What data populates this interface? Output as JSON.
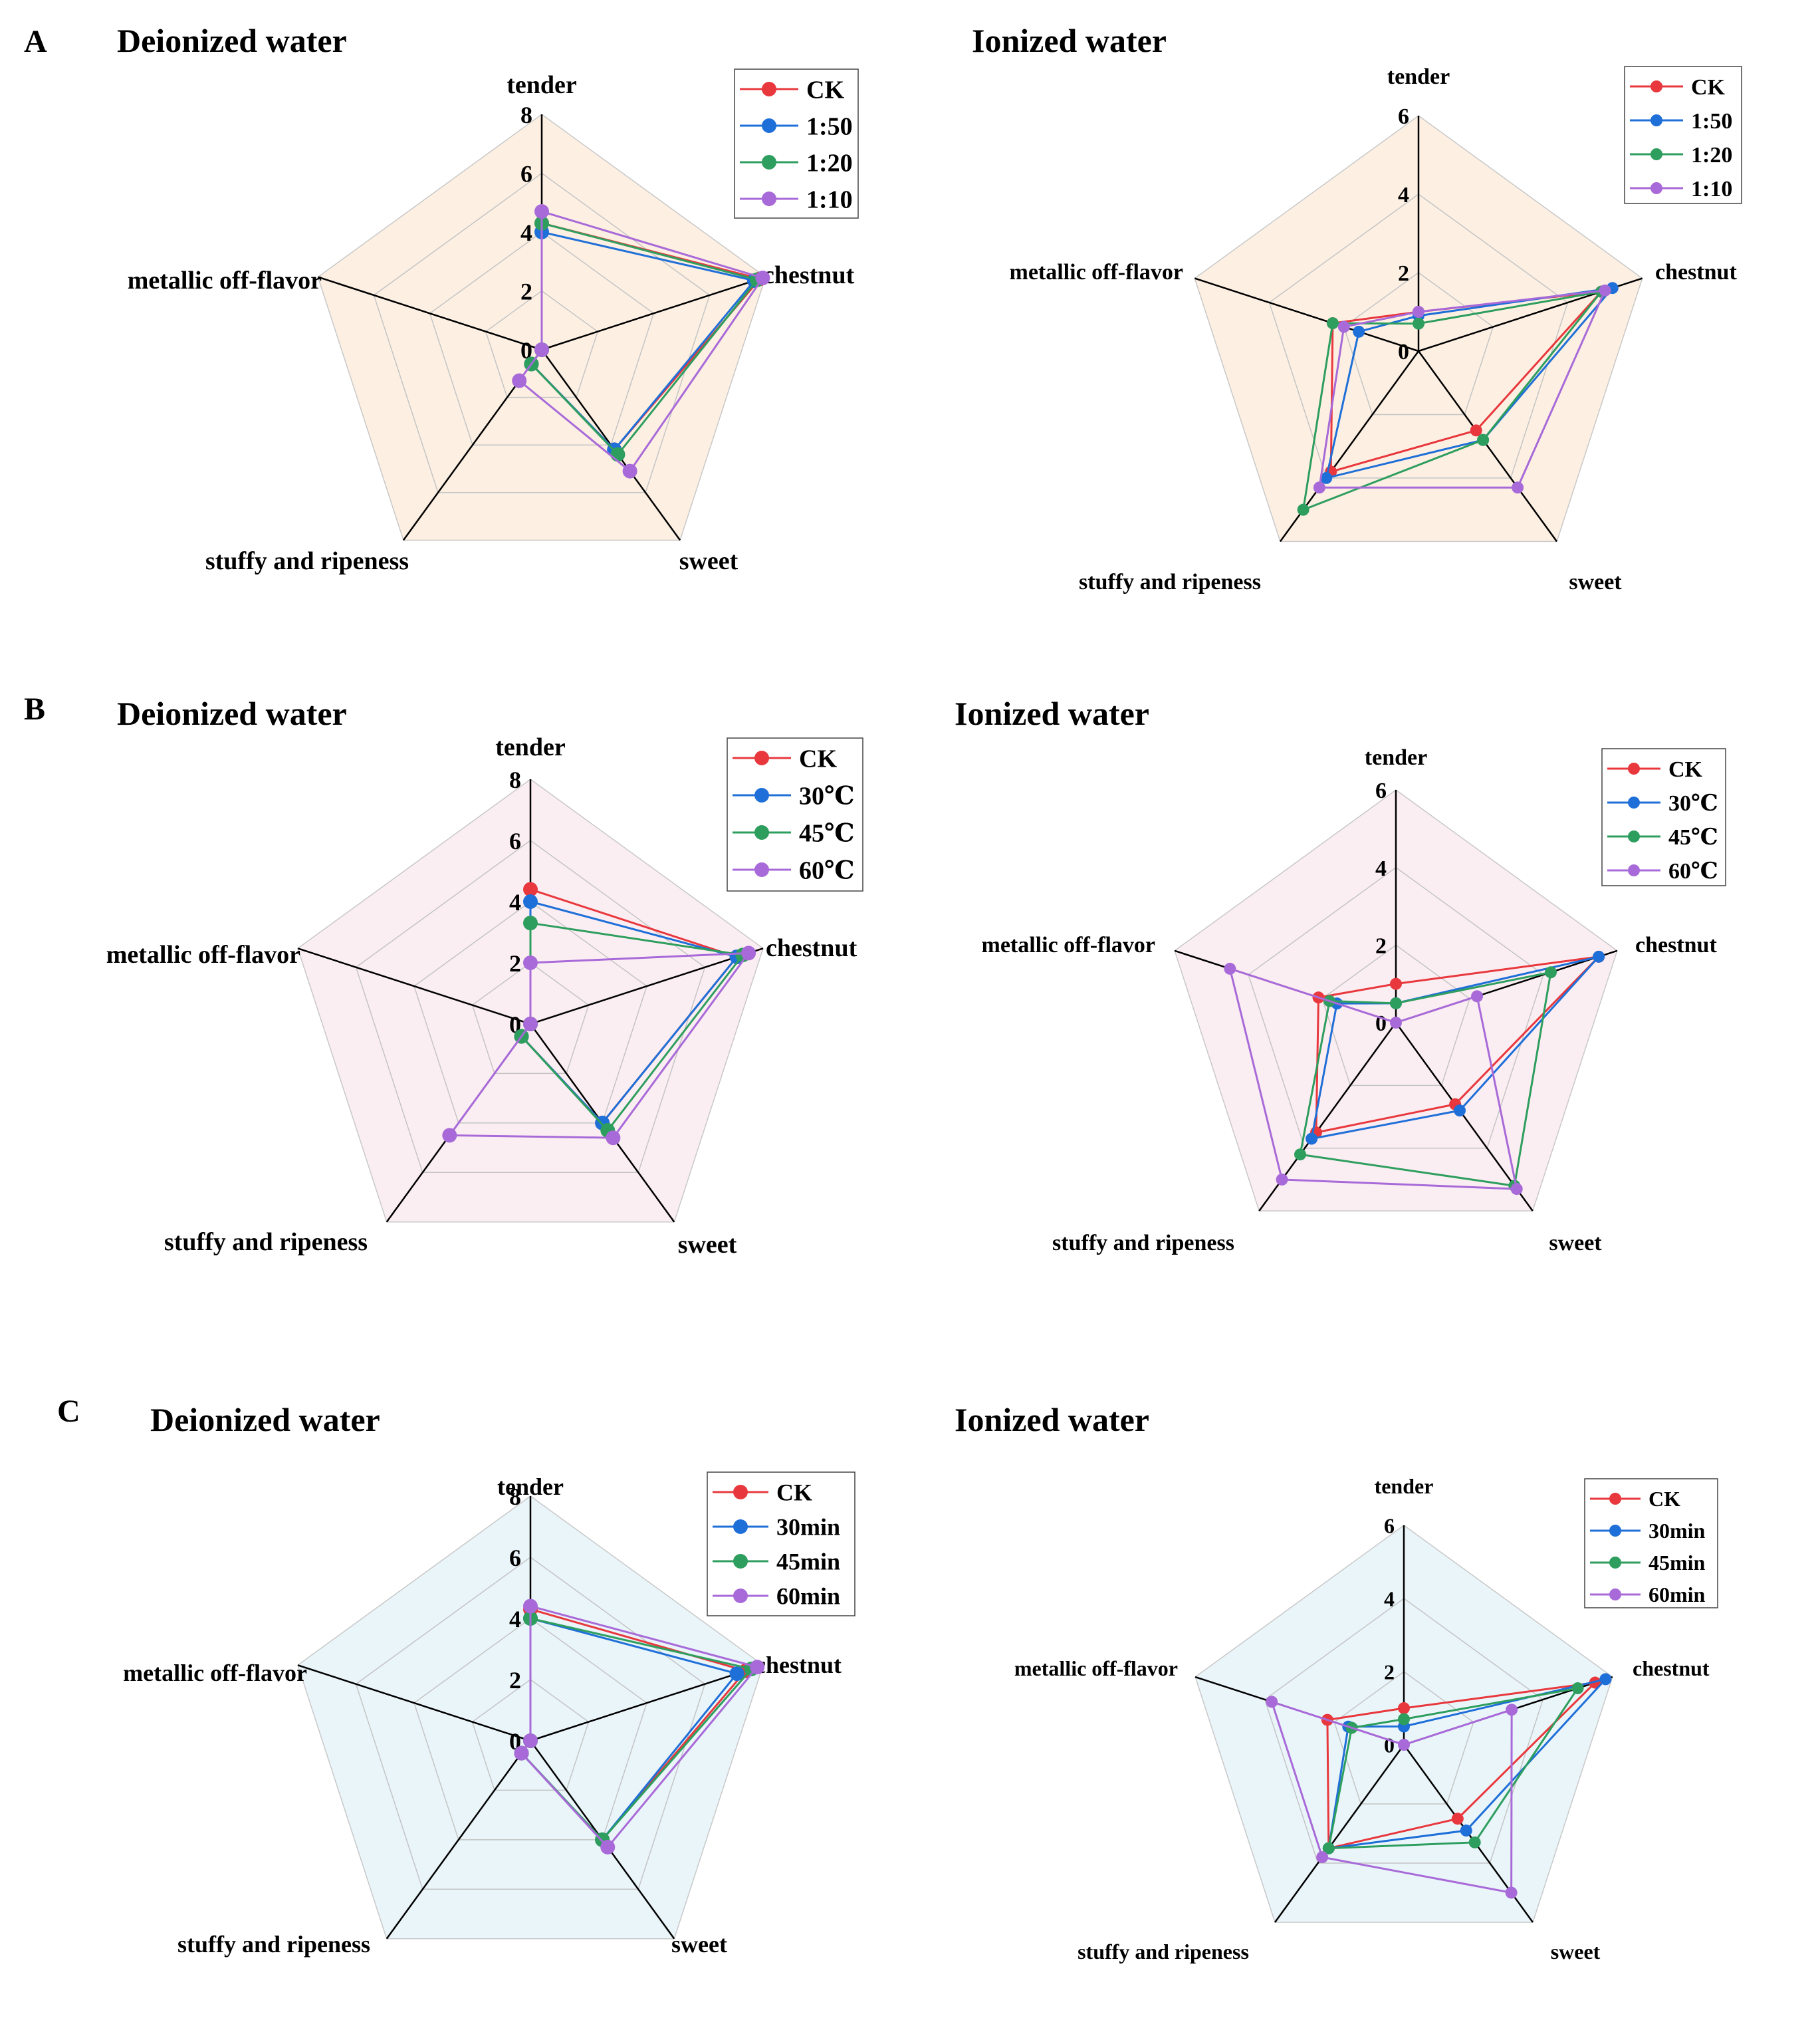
{
  "colors": {
    "CK": "#e8383d",
    "s2": "#1f6fd8",
    "s3": "#2e9e5e",
    "s4": "#a86ad8"
  },
  "panel_letters": [
    "A",
    "B",
    "C"
  ],
  "chart_data": [
    {
      "type": "radar",
      "panel": "A",
      "title": "Deionized water",
      "axes": [
        "tender",
        "chestnut",
        "sweet",
        "stuffy and ripeness",
        "metallic off-flavor"
      ],
      "ticks": [
        "0",
        "2",
        "4",
        "6",
        "8"
      ],
      "rmax": 8,
      "background": "#fdf0e3",
      "legend": "top-right",
      "series": [
        {
          "name": "CK",
          "values": [
            4.3,
            7.8,
            4.2,
            0.6,
            0
          ]
        },
        {
          "name": "1:50",
          "values": [
            4.0,
            7.6,
            4.2,
            0.6,
            0
          ]
        },
        {
          "name": "1:20",
          "values": [
            4.3,
            7.7,
            4.4,
            0.6,
            0
          ]
        },
        {
          "name": "1:10",
          "values": [
            4.7,
            7.9,
            5.1,
            1.3,
            0
          ]
        }
      ]
    },
    {
      "type": "radar",
      "panel": "A",
      "title": "Ionized water",
      "axes": [
        "tender",
        "chestnut",
        "sweet",
        "stuffy and ripeness",
        "metallic off-flavor"
      ],
      "ticks": [
        "0",
        "2",
        "4",
        "6"
      ],
      "rmax": 6,
      "background": "#fdf0e3",
      "legend": "top-right",
      "series": [
        {
          "name": "CK",
          "values": [
            1.0,
            4.9,
            2.5,
            3.8,
            2.3
          ]
        },
        {
          "name": "1:50",
          "values": [
            0.9,
            5.2,
            2.8,
            4.0,
            1.6
          ]
        },
        {
          "name": "1:20",
          "values": [
            0.7,
            4.9,
            2.8,
            5.0,
            2.3
          ]
        },
        {
          "name": "1:10",
          "values": [
            1.0,
            5.0,
            4.3,
            4.3,
            2.0
          ]
        }
      ]
    },
    {
      "type": "radar",
      "panel": "B",
      "title": "Deionized water",
      "axes": [
        "tender",
        "chestnut",
        "sweet",
        "stuffy and ripeness",
        "metallic off-flavor"
      ],
      "ticks": [
        "0",
        "2",
        "4",
        "6",
        "8"
      ],
      "rmax": 8,
      "background": "#fbeef2",
      "legend": "top-right",
      "series": [
        {
          "name": "CK",
          "values": [
            4.4,
            7.1,
            4.0,
            0.5,
            0
          ]
        },
        {
          "name": "30℃",
          "values": [
            4.0,
            7.1,
            4.0,
            0.5,
            0
          ]
        },
        {
          "name": "45℃",
          "values": [
            3.3,
            7.3,
            4.3,
            0.5,
            0
          ]
        },
        {
          "name": "60℃",
          "values": [
            2.0,
            7.5,
            4.6,
            4.5,
            0
          ]
        }
      ]
    },
    {
      "type": "radar",
      "panel": "B",
      "title": "Ionized water",
      "axes": [
        "tender",
        "chestnut",
        "sweet",
        "stuffy and ripeness",
        "metallic off-flavor"
      ],
      "ticks": [
        "0",
        "2",
        "4",
        "6"
      ],
      "rmax": 6,
      "background": "#fbeef2",
      "legend": "top-right",
      "series": [
        {
          "name": "CK",
          "values": [
            1.0,
            5.5,
            2.6,
            3.5,
            2.1
          ]
        },
        {
          "name": "30℃",
          "values": [
            0.5,
            5.5,
            2.8,
            3.7,
            1.6
          ]
        },
        {
          "name": "45℃",
          "values": [
            0.5,
            4.2,
            5.2,
            4.2,
            1.8
          ]
        },
        {
          "name": "60℃",
          "values": [
            0,
            2.2,
            5.3,
            5.0,
            4.5
          ]
        }
      ]
    },
    {
      "type": "radar",
      "panel": "C",
      "title": "Deionized water",
      "axes": [
        "tender",
        "chestnut",
        "sweet",
        "stuffy and ripeness",
        "metallic off-flavor"
      ],
      "ticks": [
        "0",
        "2",
        "4",
        "6",
        "8"
      ],
      "rmax": 8,
      "background": "#eaf5fa",
      "legend": "top-right",
      "series": [
        {
          "name": "CK",
          "values": [
            4.3,
            7.4,
            4.0,
            0.5,
            0
          ]
        },
        {
          "name": "30min",
          "values": [
            4.0,
            7.1,
            4.0,
            0.5,
            0
          ]
        },
        {
          "name": "45min",
          "values": [
            4.0,
            7.6,
            4.0,
            0.5,
            0
          ]
        },
        {
          "name": "60min",
          "values": [
            4.4,
            7.8,
            4.3,
            0.5,
            0
          ]
        }
      ]
    },
    {
      "type": "radar",
      "panel": "C",
      "title": "Ionized water",
      "axes": [
        "tender",
        "chestnut",
        "sweet",
        "stuffy and ripeness",
        "metallic off-flavor"
      ],
      "ticks": [
        "0",
        "2",
        "4",
        "6"
      ],
      "rmax": 6,
      "background": "#eaf5fa",
      "legend": "top-right",
      "series": [
        {
          "name": "CK",
          "values": [
            1.0,
            5.5,
            2.5,
            3.5,
            2.2
          ]
        },
        {
          "name": "30min",
          "values": [
            0.5,
            5.8,
            2.9,
            3.5,
            1.6
          ]
        },
        {
          "name": "45min",
          "values": [
            0.7,
            5.0,
            3.3,
            3.5,
            1.5
          ]
        },
        {
          "name": "60min",
          "values": [
            0,
            3.1,
            5.0,
            3.8,
            3.8
          ]
        }
      ]
    }
  ]
}
